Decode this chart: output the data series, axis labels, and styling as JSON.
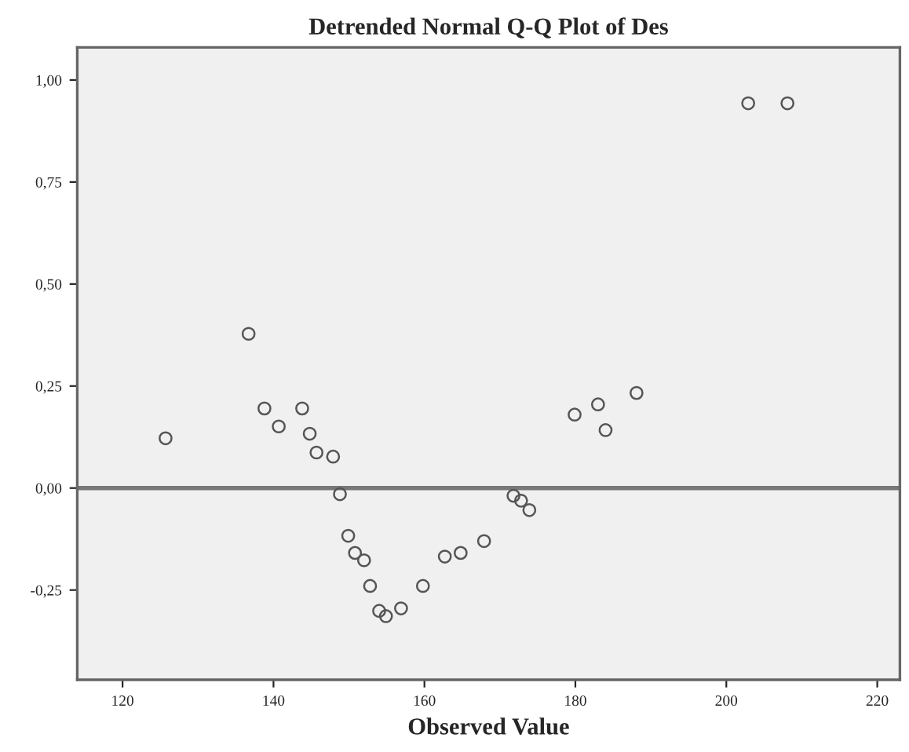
{
  "chart_data": {
    "type": "scatter",
    "title": "Detrended Normal Q-Q Plot of Des",
    "xlabel": "Observed Value",
    "series": [
      {
        "color": "#555555",
        "x": [
          125.7,
          136.7,
          138.8,
          140.7,
          143.8,
          144.8,
          145.7,
          147.9,
          148.8,
          149.9,
          150.8,
          152.0,
          152.8,
          154.0,
          154.9,
          156.9,
          159.8,
          162.7,
          164.8,
          167.9,
          171.8,
          172.8,
          173.9,
          179.9,
          183.0,
          184.0,
          188.1,
          202.9,
          208.1
        ],
        "values": [
          0.122,
          0.378,
          0.195,
          0.151,
          0.195,
          0.133,
          0.087,
          0.077,
          -0.015,
          -0.117,
          -0.159,
          -0.177,
          -0.24,
          -0.301,
          -0.314,
          -0.295,
          -0.24,
          -0.168,
          -0.159,
          -0.13,
          -0.019,
          -0.031,
          -0.054,
          0.18,
          0.205,
          0.142,
          0.233,
          0.943,
          0.943
        ]
      }
    ],
    "marker": "circle",
    "xlim": [
      114,
      223
    ],
    "xticks": [
      120,
      140,
      160,
      180,
      200,
      220
    ],
    "ylim": [
      -0.47,
      1.08
    ],
    "yticks": [
      {
        "value": -0.25,
        "label": "-0,25"
      },
      {
        "value": 0,
        "label": "0,00"
      },
      {
        "value": 0.25,
        "label": "0,25"
      },
      {
        "value": 0.5,
        "label": "0,50"
      },
      {
        "value": 0.75,
        "label": "0,75"
      },
      {
        "value": 1,
        "label": "1,00"
      }
    ],
    "ref_lines": [
      {
        "axis": "y",
        "value": 0,
        "color": "#777777"
      }
    ],
    "grid": false
  }
}
